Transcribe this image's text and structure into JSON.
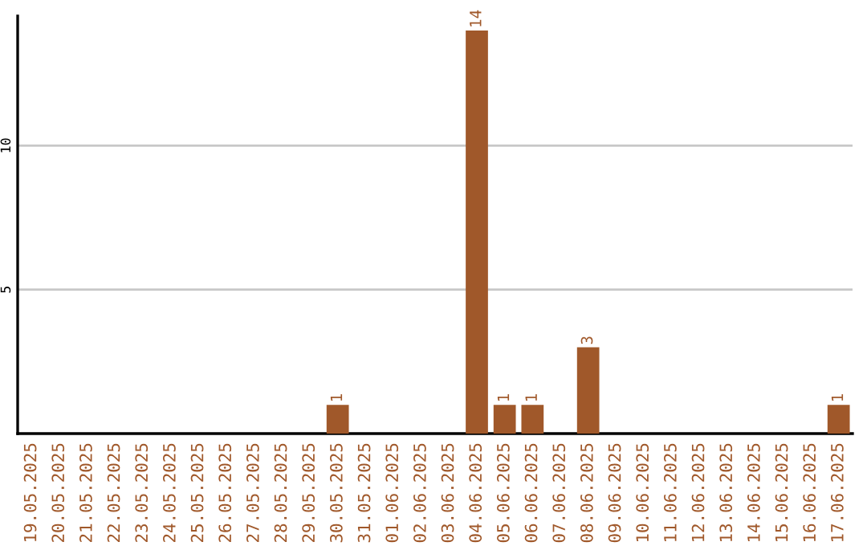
{
  "chart_data": {
    "type": "bar",
    "categories": [
      "19.05.2025",
      "20.05.2025",
      "21.05.2025",
      "22.05.2025",
      "23.05.2025",
      "24.05.2025",
      "25.05.2025",
      "26.05.2025",
      "27.05.2025",
      "28.05.2025",
      "29.05.2025",
      "30.05.2025",
      "31.05.2025",
      "01.06.2025",
      "02.06.2025",
      "03.06.2025",
      "04.06.2025",
      "05.06.2025",
      "06.06.2025",
      "07.06.2025",
      "08.06.2025",
      "09.06.2025",
      "10.06.2025",
      "11.06.2025",
      "12.06.2025",
      "13.06.2025",
      "14.06.2025",
      "15.06.2025",
      "16.06.2025",
      "17.06.2025"
    ],
    "values": [
      0,
      0,
      0,
      0,
      0,
      0,
      0,
      0,
      0,
      0,
      0,
      1,
      0,
      0,
      0,
      0,
      14,
      1,
      1,
      0,
      3,
      0,
      0,
      0,
      0,
      0,
      0,
      0,
      0,
      1
    ],
    "value_labels": [
      null,
      null,
      null,
      null,
      null,
      null,
      null,
      null,
      null,
      null,
      null,
      "1",
      null,
      null,
      null,
      null,
      "14",
      "1",
      "1",
      null,
      "3",
      null,
      null,
      null,
      null,
      null,
      null,
      null,
      null,
      "1"
    ],
    "color": "#a0582a",
    "ylim": [
      0,
      14.5
    ],
    "yticks": [
      5,
      10
    ],
    "grid": "y"
  }
}
